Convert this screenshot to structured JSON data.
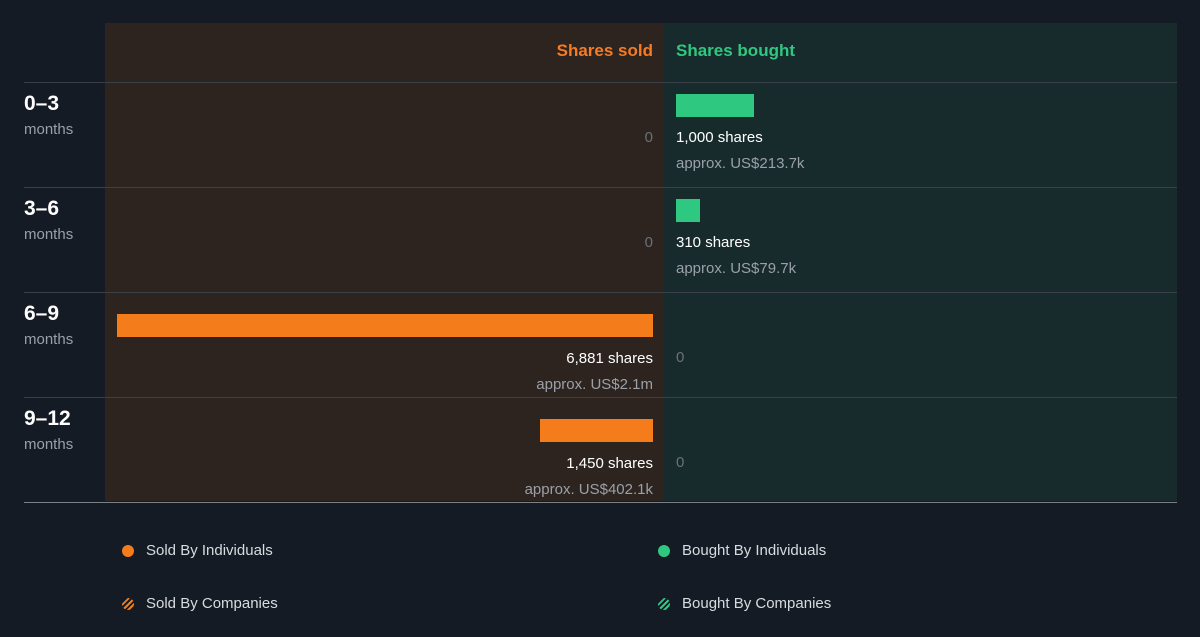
{
  "chart_data": {
    "type": "bar",
    "headers": {
      "sold": "Shares sold",
      "bought": "Shares bought"
    },
    "rows": [
      {
        "period": "0–3",
        "unit": "months",
        "sold": {
          "shares": 0,
          "shares_label": "",
          "approx_label": "",
          "zero_label": "0"
        },
        "bought": {
          "shares": 1000,
          "shares_label": "1,000 shares",
          "approx_label": "approx. US$213.7k",
          "zero_label": ""
        }
      },
      {
        "period": "3–6",
        "unit": "months",
        "sold": {
          "shares": 0,
          "shares_label": "",
          "approx_label": "",
          "zero_label": "0"
        },
        "bought": {
          "shares": 310,
          "shares_label": "310 shares",
          "approx_label": "approx. US$79.7k",
          "zero_label": ""
        }
      },
      {
        "period": "6–9",
        "unit": "months",
        "sold": {
          "shares": 6881,
          "shares_label": "6,881 shares",
          "approx_label": "approx. US$2.1m",
          "zero_label": ""
        },
        "bought": {
          "shares": 0,
          "shares_label": "",
          "approx_label": "",
          "zero_label": "0"
        }
      },
      {
        "period": "9–12",
        "unit": "months",
        "sold": {
          "shares": 1450,
          "shares_label": "1,450 shares",
          "approx_label": "approx. US$402.1k",
          "zero_label": ""
        },
        "bought": {
          "shares": 0,
          "shares_label": "",
          "approx_label": "",
          "zero_label": "0"
        }
      }
    ],
    "colors": {
      "sold": "#f57c1b",
      "bought": "#2fc880"
    }
  },
  "legend": [
    {
      "label": "Sold By Individuals",
      "icon": "solid-dot",
      "color": "#f57c1b"
    },
    {
      "label": "Bought By Individuals",
      "icon": "solid-dot",
      "color": "#2fc880"
    },
    {
      "label": "Sold By Companies",
      "icon": "striped-dot",
      "color": "#f57c1b"
    },
    {
      "label": "Bought By Companies",
      "icon": "striped-dot",
      "color": "#2fc880"
    }
  ]
}
